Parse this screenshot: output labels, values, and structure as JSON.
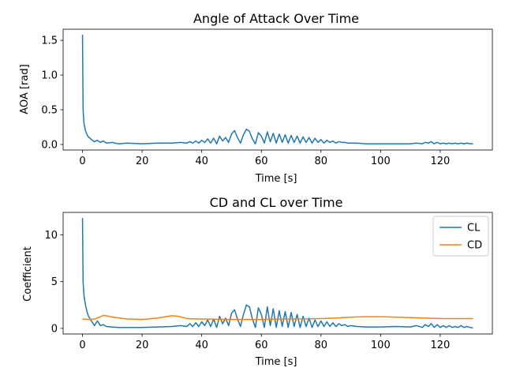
{
  "chart_data": [
    {
      "type": "line",
      "title": "Angle of Attack Over Time",
      "xlabel": "Time [s]",
      "ylabel": "AOA [rad]",
      "xlim": [
        -6.5,
        137.5
      ],
      "ylim": [
        -0.08,
        1.66
      ],
      "xticks": [
        0,
        20,
        40,
        60,
        80,
        100,
        120
      ],
      "yticks": [
        0.0,
        0.5,
        1.0,
        1.5
      ],
      "ytick_labels": [
        "0.0",
        "0.5",
        "1.0",
        "1.5"
      ],
      "grid": false,
      "legend": null,
      "series": [
        {
          "color": "#1f77b4",
          "x": [
            0,
            0.2,
            0.5,
            1,
            1.5,
            2,
            3,
            4,
            5,
            6,
            7,
            8,
            10,
            12,
            15,
            20,
            25,
            30,
            33,
            35,
            36,
            37,
            38,
            39,
            40,
            41,
            42,
            43,
            44,
            45,
            46,
            47,
            48,
            49,
            50,
            51,
            52,
            53,
            54,
            55,
            56,
            57,
            58,
            59,
            60,
            61,
            62,
            63,
            64,
            65,
            66,
            67,
            68,
            69,
            70,
            71,
            72,
            73,
            74,
            75,
            76,
            77,
            78,
            79,
            80,
            81,
            82,
            83,
            84,
            85,
            86,
            87,
            88,
            89,
            90,
            92,
            95,
            100,
            105,
            110,
            112,
            114,
            115,
            116,
            117,
            118,
            119,
            120,
            121,
            122,
            123,
            124,
            125,
            126,
            127,
            128,
            129,
            130,
            131
          ],
          "values": [
            1.58,
            0.5,
            0.3,
            0.2,
            0.14,
            0.11,
            0.07,
            0.04,
            0.06,
            0.03,
            0.05,
            0.02,
            0.03,
            0.01,
            0.02,
            0.01,
            0.02,
            0.02,
            0.03,
            0.02,
            0.04,
            0.02,
            0.05,
            0.02,
            0.06,
            0.03,
            0.08,
            0.02,
            0.09,
            0.01,
            0.12,
            0.05,
            0.1,
            0.03,
            0.15,
            0.2,
            0.1,
            0.02,
            0.14,
            0.22,
            0.19,
            0.08,
            0.01,
            0.17,
            0.12,
            0.02,
            0.18,
            0.04,
            0.16,
            0.02,
            0.15,
            0.03,
            0.14,
            0.02,
            0.13,
            0.03,
            0.12,
            0.02,
            0.11,
            0.03,
            0.1,
            0.02,
            0.09,
            0.03,
            0.07,
            0.02,
            0.06,
            0.03,
            0.05,
            0.02,
            0.04,
            0.03,
            0.03,
            0.02,
            0.02,
            0.02,
            0.01,
            0.01,
            0.01,
            0.01,
            0.02,
            0.01,
            0.03,
            0.02,
            0.04,
            0.01,
            0.03,
            0.01,
            0.02,
            0.01,
            0.02,
            0.01,
            0.02,
            0.01,
            0.02,
            0.01,
            0.02,
            0.01,
            0.01
          ]
        }
      ]
    },
    {
      "type": "line",
      "title": "CD and CL over Time",
      "xlabel": "Time [s]",
      "ylabel": "Coefficient",
      "xlim": [
        -6.5,
        137.5
      ],
      "ylim": [
        -0.6,
        12.4
      ],
      "xticks": [
        0,
        20,
        40,
        60,
        80,
        100,
        120
      ],
      "yticks": [
        0,
        5,
        10
      ],
      "ytick_labels": [
        "0",
        "5",
        "10"
      ],
      "grid": false,
      "legend": "top-right",
      "series": [
        {
          "name": "CL",
          "color": "#1f77b4",
          "x": [
            0,
            0.2,
            0.5,
            1,
            1.5,
            2,
            3,
            4,
            5,
            6,
            7,
            8,
            10,
            12,
            15,
            20,
            25,
            30,
            33,
            35,
            36,
            37,
            38,
            39,
            40,
            41,
            42,
            43,
            44,
            45,
            46,
            47,
            48,
            49,
            50,
            51,
            52,
            53,
            54,
            55,
            56,
            57,
            58,
            59,
            60,
            61,
            62,
            63,
            64,
            65,
            66,
            67,
            68,
            69,
            70,
            71,
            72,
            73,
            74,
            75,
            76,
            77,
            78,
            79,
            80,
            81,
            82,
            83,
            84,
            85,
            86,
            87,
            88,
            89,
            90,
            92,
            95,
            100,
            105,
            110,
            112,
            114,
            115,
            116,
            117,
            118,
            119,
            120,
            121,
            122,
            123,
            124,
            125,
            126,
            127,
            128,
            129,
            130,
            131
          ],
          "values": [
            11.8,
            5.0,
            3.5,
            2.5,
            1.8,
            1.3,
            0.8,
            0.3,
            0.8,
            0.3,
            0.4,
            0.2,
            0.15,
            0.1,
            0.1,
            0.1,
            0.15,
            0.2,
            0.3,
            0.2,
            0.5,
            0.2,
            0.6,
            0.2,
            0.7,
            0.3,
            0.9,
            0.2,
            1.0,
            0.1,
            1.3,
            0.5,
            1.1,
            0.3,
            1.6,
            2.0,
            1.0,
            0.2,
            1.5,
            2.5,
            2.3,
            1.0,
            0.1,
            2.2,
            1.5,
            0.1,
            2.3,
            0.3,
            2.1,
            0.1,
            1.9,
            0.2,
            1.8,
            0.1,
            1.7,
            0.2,
            1.5,
            0.1,
            1.3,
            0.2,
            1.1,
            0.1,
            0.9,
            0.2,
            0.8,
            0.2,
            0.7,
            0.2,
            0.6,
            0.2,
            0.5,
            0.3,
            0.4,
            0.2,
            0.3,
            0.2,
            0.15,
            0.15,
            0.2,
            0.15,
            0.3,
            0.1,
            0.4,
            0.2,
            0.5,
            0.1,
            0.4,
            0.1,
            0.3,
            0.1,
            0.3,
            0.1,
            0.2,
            0.1,
            0.3,
            0.1,
            0.2,
            0.1,
            0.05
          ]
        },
        {
          "name": "CD",
          "color": "#ff7f0e",
          "x": [
            0,
            2,
            4,
            5,
            6,
            7,
            8,
            10,
            15,
            20,
            25,
            30,
            32,
            35,
            40,
            50,
            60,
            70,
            80,
            85,
            90,
            95,
            100,
            110,
            115,
            120,
            125,
            131
          ],
          "values": [
            1.0,
            0.95,
            1.0,
            1.1,
            1.25,
            1.38,
            1.35,
            1.2,
            1.0,
            0.95,
            1.1,
            1.35,
            1.3,
            1.05,
            1.0,
            0.95,
            0.95,
            1.0,
            1.05,
            1.1,
            1.2,
            1.25,
            1.25,
            1.15,
            1.1,
            1.05,
            1.05,
            1.05
          ]
        }
      ]
    }
  ]
}
